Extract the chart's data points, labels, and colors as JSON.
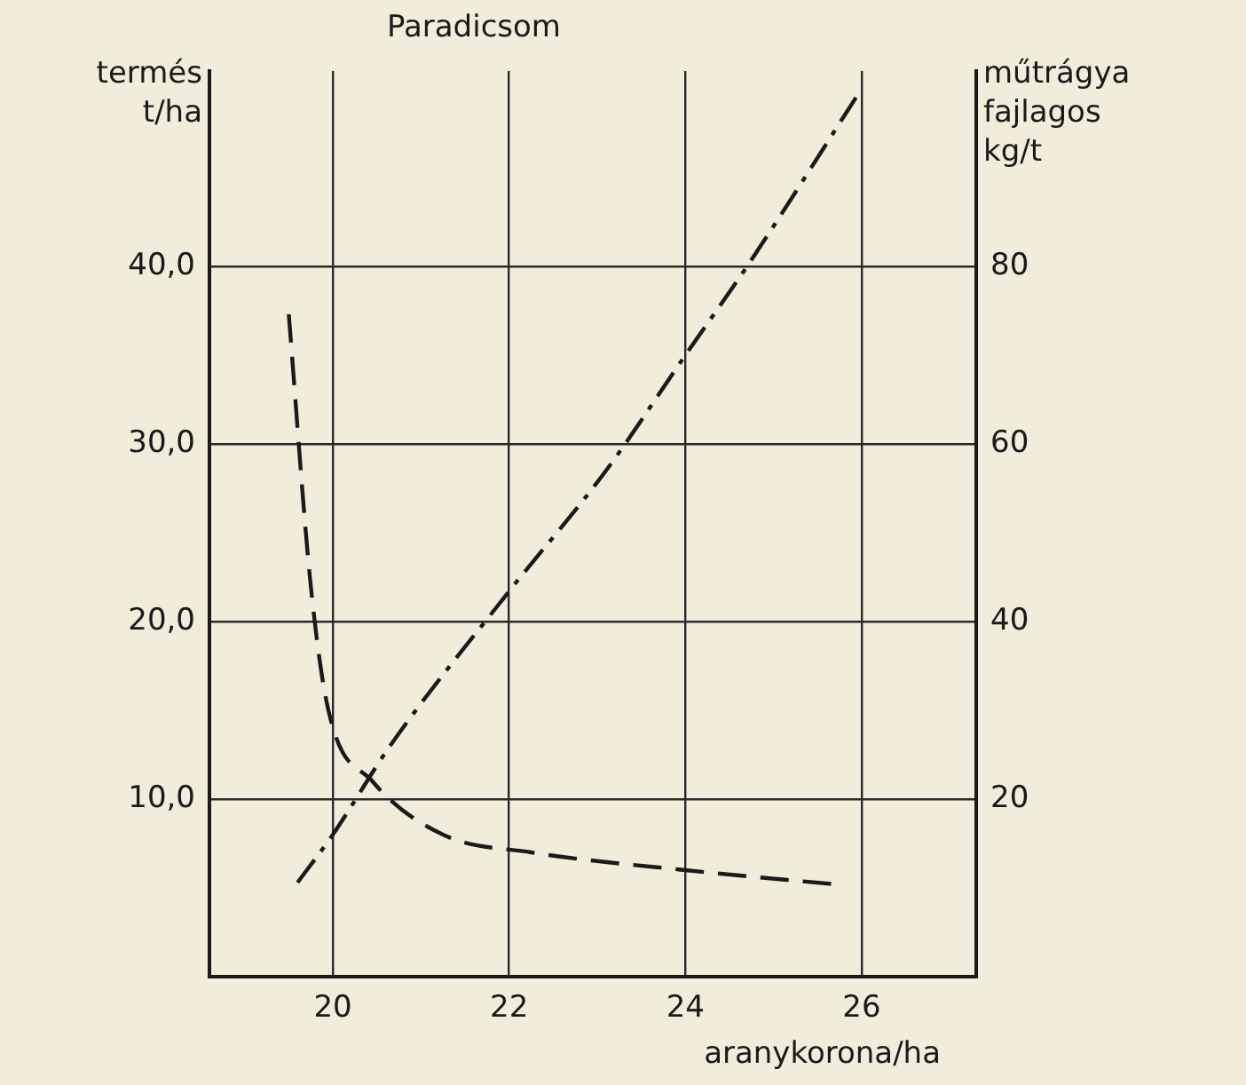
{
  "chart_data": {
    "type": "line",
    "title": "Paradicsom",
    "xlabel": "aranykorona/ha",
    "ylabel": "termés\nt/ha",
    "y2label": "műtrágya\nfajlagos\nkg/t",
    "xlim": [
      18.6,
      27.3
    ],
    "xticks": [
      20,
      22,
      24,
      26
    ],
    "ylim": [
      0,
      51
    ],
    "yticks": [
      {
        "value": 10,
        "label": "10,0"
      },
      {
        "value": 20,
        "label": "20,0"
      },
      {
        "value": 30,
        "label": "30,0"
      },
      {
        "value": 40,
        "label": "40,0"
      }
    ],
    "y2lim": [
      0,
      102
    ],
    "y2ticks": [
      20,
      40,
      60,
      80
    ],
    "grid": true,
    "legend": false,
    "marker": "none",
    "series": [
      {
        "color": "#1a1a1a",
        "line_style": "dashdot",
        "x": [
          19.6,
          20,
          20.65,
          22,
          23.1,
          24,
          24.7,
          26
        ],
        "values": [
          5.3,
          8,
          13,
          21.7,
          28.5,
          35,
          40,
          50
        ]
      },
      {
        "color": "#1a1a1a",
        "line_style": "dashed",
        "axis": "y2",
        "x": [
          19.5,
          19.75,
          19.95,
          20.45,
          21.25,
          22.25,
          24,
          25.7
        ],
        "values": [
          74.6,
          44,
          30,
          22,
          16,
          14,
          12,
          10.4
        ]
      }
    ]
  }
}
